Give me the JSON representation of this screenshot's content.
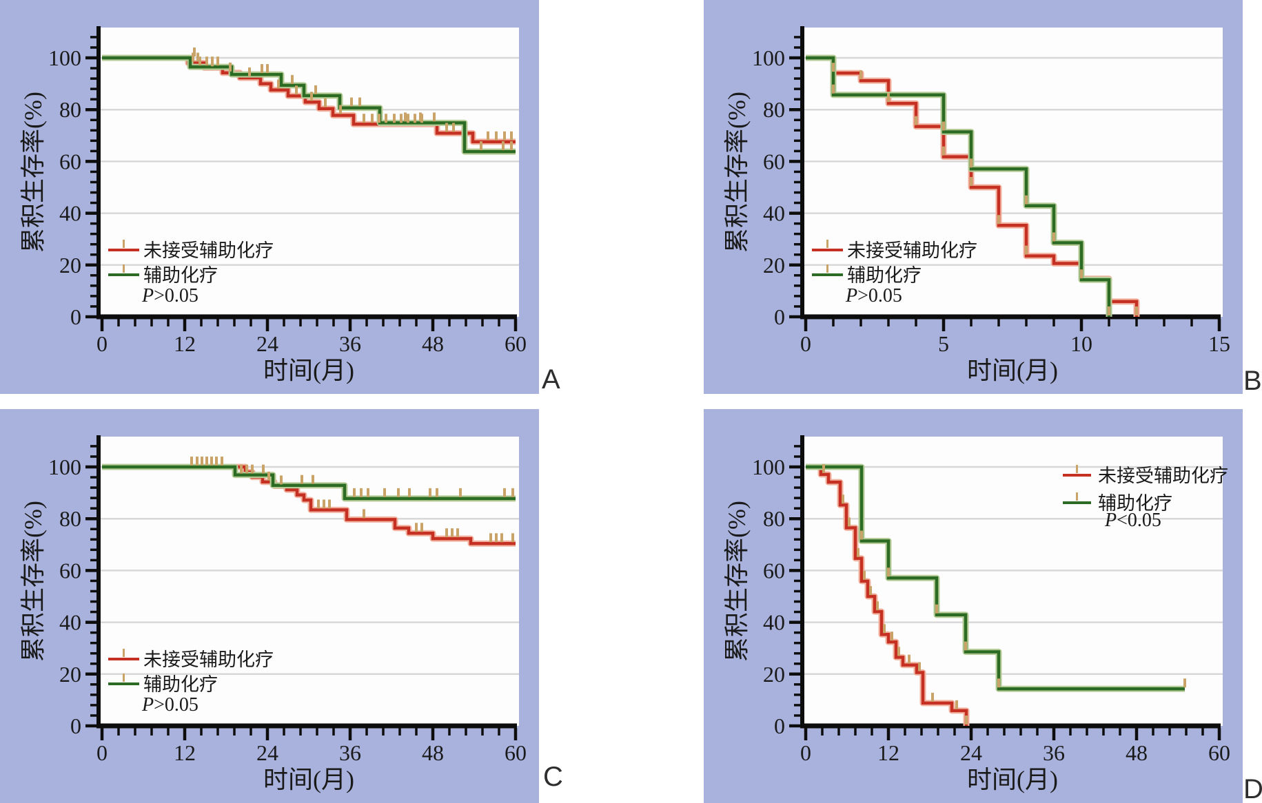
{
  "style": {
    "background": "#ffffff",
    "panel_bg": "#a9b2dc",
    "plot_bg": "#fdfdfd",
    "grid_color": "#d8d8d8",
    "axis_color": "#0d0d0d",
    "text_color": "#1a1a1a",
    "red": "#c53022",
    "red_halo": "#f2b2a0",
    "green": "#2c6b24",
    "green_halo": "#b5cc96",
    "censor_color": "#c9a368"
  },
  "labels": {
    "y_axis": "累积生存率(%)",
    "x_axis": "时间(月)",
    "series_no_chemo": "未接受辅助化疗",
    "series_chemo": "辅助化疗"
  },
  "chart_data": [
    {
      "id": "A",
      "panel_label": "A",
      "type": "line",
      "subtype": "kaplan-meier-step",
      "xlabel": "时间(月)",
      "ylabel": "累积生存率(%)",
      "xlim": [
        0,
        60
      ],
      "ylim": [
        0,
        100
      ],
      "x_ticks": [
        0,
        12,
        24,
        36,
        48,
        60
      ],
      "x_minor_step": 2.4,
      "y_ticks": [
        0,
        20,
        40,
        60,
        80,
        100
      ],
      "y_minor_step": 4,
      "grid": "horizontal",
      "annotation": "P>0.05",
      "legend_position": "lower-left",
      "series": [
        {
          "name": "未接受辅助化疗",
          "color": "#c53022",
          "halo": "#f2b2a0",
          "points": [
            [
              0,
              100
            ],
            [
              12.5,
              98
            ],
            [
              14.8,
              96.2
            ],
            [
              17.5,
              94.2
            ],
            [
              20,
              92.3
            ],
            [
              23,
              90
            ],
            [
              24.5,
              87.6
            ],
            [
              27,
              85.3
            ],
            [
              29.5,
              82.9
            ],
            [
              31.5,
              80.4
            ],
            [
              33.5,
              77.8
            ],
            [
              36.5,
              74.4
            ],
            [
              48.6,
              70.9
            ],
            [
              53.8,
              67.6
            ],
            [
              60,
              67.6
            ]
          ],
          "censors": [
            [
              13.2,
              98
            ],
            [
              13.9,
              98
            ],
            [
              16,
              96.2
            ],
            [
              18.6,
              94.2
            ],
            [
              21.4,
              92.3
            ],
            [
              25.6,
              87.6
            ],
            [
              28.2,
              85.3
            ],
            [
              30.4,
              82.9
            ],
            [
              32.4,
              80.4
            ],
            [
              34.6,
              77.8
            ],
            [
              38,
              74.4
            ],
            [
              39.2,
              74.4
            ],
            [
              40.2,
              74.4
            ],
            [
              41.2,
              74.4
            ],
            [
              42.4,
              74.4
            ],
            [
              43.4,
              74.4
            ],
            [
              44.4,
              74.4
            ],
            [
              45.4,
              74.4
            ],
            [
              46.4,
              74.4
            ],
            [
              50,
              70.9
            ],
            [
              51,
              70.9
            ],
            [
              56,
              67.6
            ],
            [
              57.2,
              67.6
            ],
            [
              58.4,
              67.6
            ],
            [
              59.4,
              67.6
            ]
          ]
        },
        {
          "name": "辅助化疗",
          "color": "#2c6b24",
          "halo": "#b5cc96",
          "points": [
            [
              0,
              100
            ],
            [
              12.8,
              96.5
            ],
            [
              18.8,
              93.6
            ],
            [
              26,
              89.4
            ],
            [
              29.3,
              85.4
            ],
            [
              34.5,
              80.7
            ],
            [
              40.3,
              74.9
            ],
            [
              52.6,
              63.8
            ],
            [
              60,
              63.8
            ]
          ],
          "censors": [
            [
              13.4,
              100
            ],
            [
              14.2,
              96.5
            ],
            [
              15.2,
              96.5
            ],
            [
              16,
              96.5
            ],
            [
              16.8,
              96.5
            ],
            [
              23.2,
              93.6
            ],
            [
              24,
              93.6
            ],
            [
              27.6,
              89.4
            ],
            [
              31,
              85.4
            ],
            [
              36.2,
              80.7
            ],
            [
              37.4,
              80.7
            ],
            [
              44,
              74.9
            ],
            [
              46.2,
              74.9
            ],
            [
              48.2,
              74.9
            ],
            [
              55,
              63.8
            ],
            [
              58.2,
              63.8
            ],
            [
              59.4,
              63.8
            ]
          ]
        }
      ]
    },
    {
      "id": "B",
      "panel_label": "B",
      "type": "line",
      "subtype": "kaplan-meier-step",
      "xlabel": "时间(月)",
      "ylabel": "累积生存率(%)",
      "xlim": [
        0,
        15
      ],
      "ylim": [
        0,
        100
      ],
      "x_ticks": [
        0,
        5,
        10,
        15
      ],
      "x_minor_step": 1,
      "y_ticks": [
        0,
        20,
        40,
        60,
        80,
        100
      ],
      "y_minor_step": 4,
      "grid": "horizontal",
      "annotation": "P>0.05",
      "legend_position": "lower-left",
      "series": [
        {
          "name": "未接受辅助化疗",
          "color": "#c53022",
          "halo": "#f2b2a0",
          "points": [
            [
              0,
              100
            ],
            [
              1,
              94.1
            ],
            [
              2,
              91.2
            ],
            [
              3,
              82.4
            ],
            [
              4,
              73.5
            ],
            [
              5,
              61.8
            ],
            [
              6,
              50
            ],
            [
              7,
              35.3
            ],
            [
              8,
              23.5
            ],
            [
              9,
              20.6
            ],
            [
              10,
              14.7
            ],
            [
              11,
              5.9
            ],
            [
              12,
              0
            ]
          ],
          "censors": [
            [
              1,
              94.1
            ],
            [
              2,
              91.2
            ],
            [
              3,
              82.4
            ],
            [
              4,
              73.5
            ],
            [
              5,
              61.8
            ],
            [
              6,
              50
            ],
            [
              7,
              35.3
            ],
            [
              8,
              23.5
            ],
            [
              12,
              0
            ]
          ]
        },
        {
          "name": "辅助化疗",
          "color": "#2c6b24",
          "halo": "#b5cc96",
          "points": [
            [
              0,
              100
            ],
            [
              1,
              85.7
            ],
            [
              5,
              71.4
            ],
            [
              6,
              57.1
            ],
            [
              8,
              42.9
            ],
            [
              9,
              28.6
            ],
            [
              10,
              14.3
            ],
            [
              11,
              0
            ]
          ],
          "censors": [
            [
              1,
              85.7
            ],
            [
              5,
              71.4
            ],
            [
              6,
              57.1
            ],
            [
              8,
              42.9
            ],
            [
              9,
              28.6
            ],
            [
              10,
              14.3
            ],
            [
              11,
              0
            ]
          ]
        }
      ]
    },
    {
      "id": "C",
      "panel_label": "C",
      "type": "line",
      "subtype": "kaplan-meier-step",
      "xlabel": "时间(月)",
      "ylabel": "累积生存率(%)",
      "xlim": [
        0,
        60
      ],
      "ylim": [
        0,
        100
      ],
      "x_ticks": [
        0,
        12,
        24,
        36,
        48,
        60
      ],
      "x_minor_step": 2.4,
      "y_ticks": [
        0,
        20,
        40,
        60,
        80,
        100
      ],
      "y_minor_step": 4,
      "grid": "horizontal",
      "annotation": "P>0.05",
      "legend_position": "lower-left",
      "series": [
        {
          "name": "未接受辅助化疗",
          "color": "#c53022",
          "halo": "#f2b2a0",
          "points": [
            [
              0,
              100
            ],
            [
              20.8,
              98
            ],
            [
              21.8,
              96.1
            ],
            [
              23.3,
              94.2
            ],
            [
              25,
              92.7
            ],
            [
              26.8,
              91.2
            ],
            [
              28.3,
              89.2
            ],
            [
              29.3,
              87.2
            ],
            [
              30.3,
              83.4
            ],
            [
              35.5,
              79.7
            ],
            [
              42.5,
              76.4
            ],
            [
              44.5,
              74.4
            ],
            [
              48,
              72.3
            ],
            [
              53.5,
              70.4
            ],
            [
              60,
              70.4
            ]
          ],
          "censors": [
            [
              13,
              100
            ],
            [
              13.8,
              100
            ],
            [
              14.5,
              100
            ],
            [
              15.2,
              100
            ],
            [
              15.9,
              100
            ],
            [
              16.6,
              100
            ],
            [
              17.4,
              100
            ],
            [
              24.2,
              94.2
            ],
            [
              26,
              92.7
            ],
            [
              31.4,
              83.4
            ],
            [
              32.2,
              83.4
            ],
            [
              33,
              83.4
            ],
            [
              38,
              79.7
            ],
            [
              45.6,
              74.4
            ],
            [
              46.4,
              74.4
            ],
            [
              50,
              72.3
            ],
            [
              50.8,
              72.3
            ],
            [
              51.6,
              72.3
            ],
            [
              56.4,
              70.4
            ],
            [
              57.2,
              70.4
            ],
            [
              58,
              70.4
            ],
            [
              59.6,
              70.4
            ]
          ]
        },
        {
          "name": "辅助化疗",
          "color": "#2c6b24",
          "halo": "#b5cc96",
          "points": [
            [
              0,
              100
            ],
            [
              19.3,
              96.9
            ],
            [
              24.8,
              92.9
            ],
            [
              35.2,
              87.8
            ],
            [
              60,
              87.8
            ]
          ],
          "censors": [
            [
              20.2,
              96.9
            ],
            [
              21,
              96.9
            ],
            [
              21.8,
              96.9
            ],
            [
              23.4,
              96.9
            ],
            [
              29,
              92.9
            ],
            [
              30.6,
              92.9
            ],
            [
              36.6,
              87.8
            ],
            [
              37.6,
              87.8
            ],
            [
              38.6,
              87.8
            ],
            [
              41,
              87.8
            ],
            [
              43,
              87.8
            ],
            [
              44.6,
              87.8
            ],
            [
              47.6,
              87.8
            ],
            [
              48.6,
              87.8
            ],
            [
              52,
              87.8
            ],
            [
              58.4,
              87.8
            ],
            [
              59.6,
              87.8
            ]
          ]
        }
      ]
    },
    {
      "id": "D",
      "panel_label": "D",
      "type": "line",
      "subtype": "kaplan-meier-step",
      "xlabel": "时间(月)",
      "ylabel": "累积生存率(%)",
      "xlim": [
        0,
        60
      ],
      "ylim": [
        0,
        100
      ],
      "x_ticks": [
        0,
        12,
        24,
        36,
        48,
        60
      ],
      "x_minor_step": 2.4,
      "y_ticks": [
        0,
        20,
        40,
        60,
        80,
        100
      ],
      "y_minor_step": 4,
      "grid": "horizontal",
      "annotation": "P<0.05",
      "legend_position": "upper-right",
      "series": [
        {
          "name": "未接受辅助化疗",
          "color": "#c53022",
          "halo": "#f2b2a0",
          "points": [
            [
              0,
              100
            ],
            [
              2.2,
              97.1
            ],
            [
              3.3,
              94.1
            ],
            [
              5,
              85.3
            ],
            [
              5.9,
              76.5
            ],
            [
              7.2,
              64.7
            ],
            [
              8.1,
              55.9
            ],
            [
              9,
              50
            ],
            [
              10,
              44.1
            ],
            [
              11,
              35.3
            ],
            [
              12,
              32.4
            ],
            [
              13.1,
              26.5
            ],
            [
              14.1,
              23.5
            ],
            [
              16.1,
              20.6
            ],
            [
              17,
              8.8
            ],
            [
              21.2,
              5.9
            ],
            [
              23.3,
              0
            ]
          ],
          "censors": [
            [
              2.6,
              97.1
            ],
            [
              5.4,
              85.3
            ],
            [
              6.3,
              76.5
            ],
            [
              7.6,
              64.7
            ],
            [
              8.5,
              55.9
            ],
            [
              9.4,
              50
            ],
            [
              10.4,
              44.1
            ],
            [
              11.4,
              35.3
            ],
            [
              12.5,
              32.4
            ],
            [
              13.5,
              26.5
            ],
            [
              15,
              23.5
            ],
            [
              16.5,
              20.6
            ],
            [
              18.4,
              8.8
            ],
            [
              21.9,
              5.9
            ],
            [
              23.3,
              0
            ]
          ]
        },
        {
          "name": "辅助化疗",
          "color": "#2c6b24",
          "halo": "#b5cc96",
          "points": [
            [
              0,
              100
            ],
            [
              8.1,
              71.4
            ],
            [
              12,
              57.1
            ],
            [
              19,
              42.9
            ],
            [
              23.2,
              28.6
            ],
            [
              28,
              14.3
            ],
            [
              55,
              14.3
            ]
          ],
          "censors": [
            [
              8.1,
              71.4
            ],
            [
              12,
              57.1
            ],
            [
              19,
              42.9
            ],
            [
              23.2,
              28.6
            ],
            [
              28,
              14.3
            ],
            [
              55,
              14.3
            ]
          ]
        }
      ]
    }
  ]
}
